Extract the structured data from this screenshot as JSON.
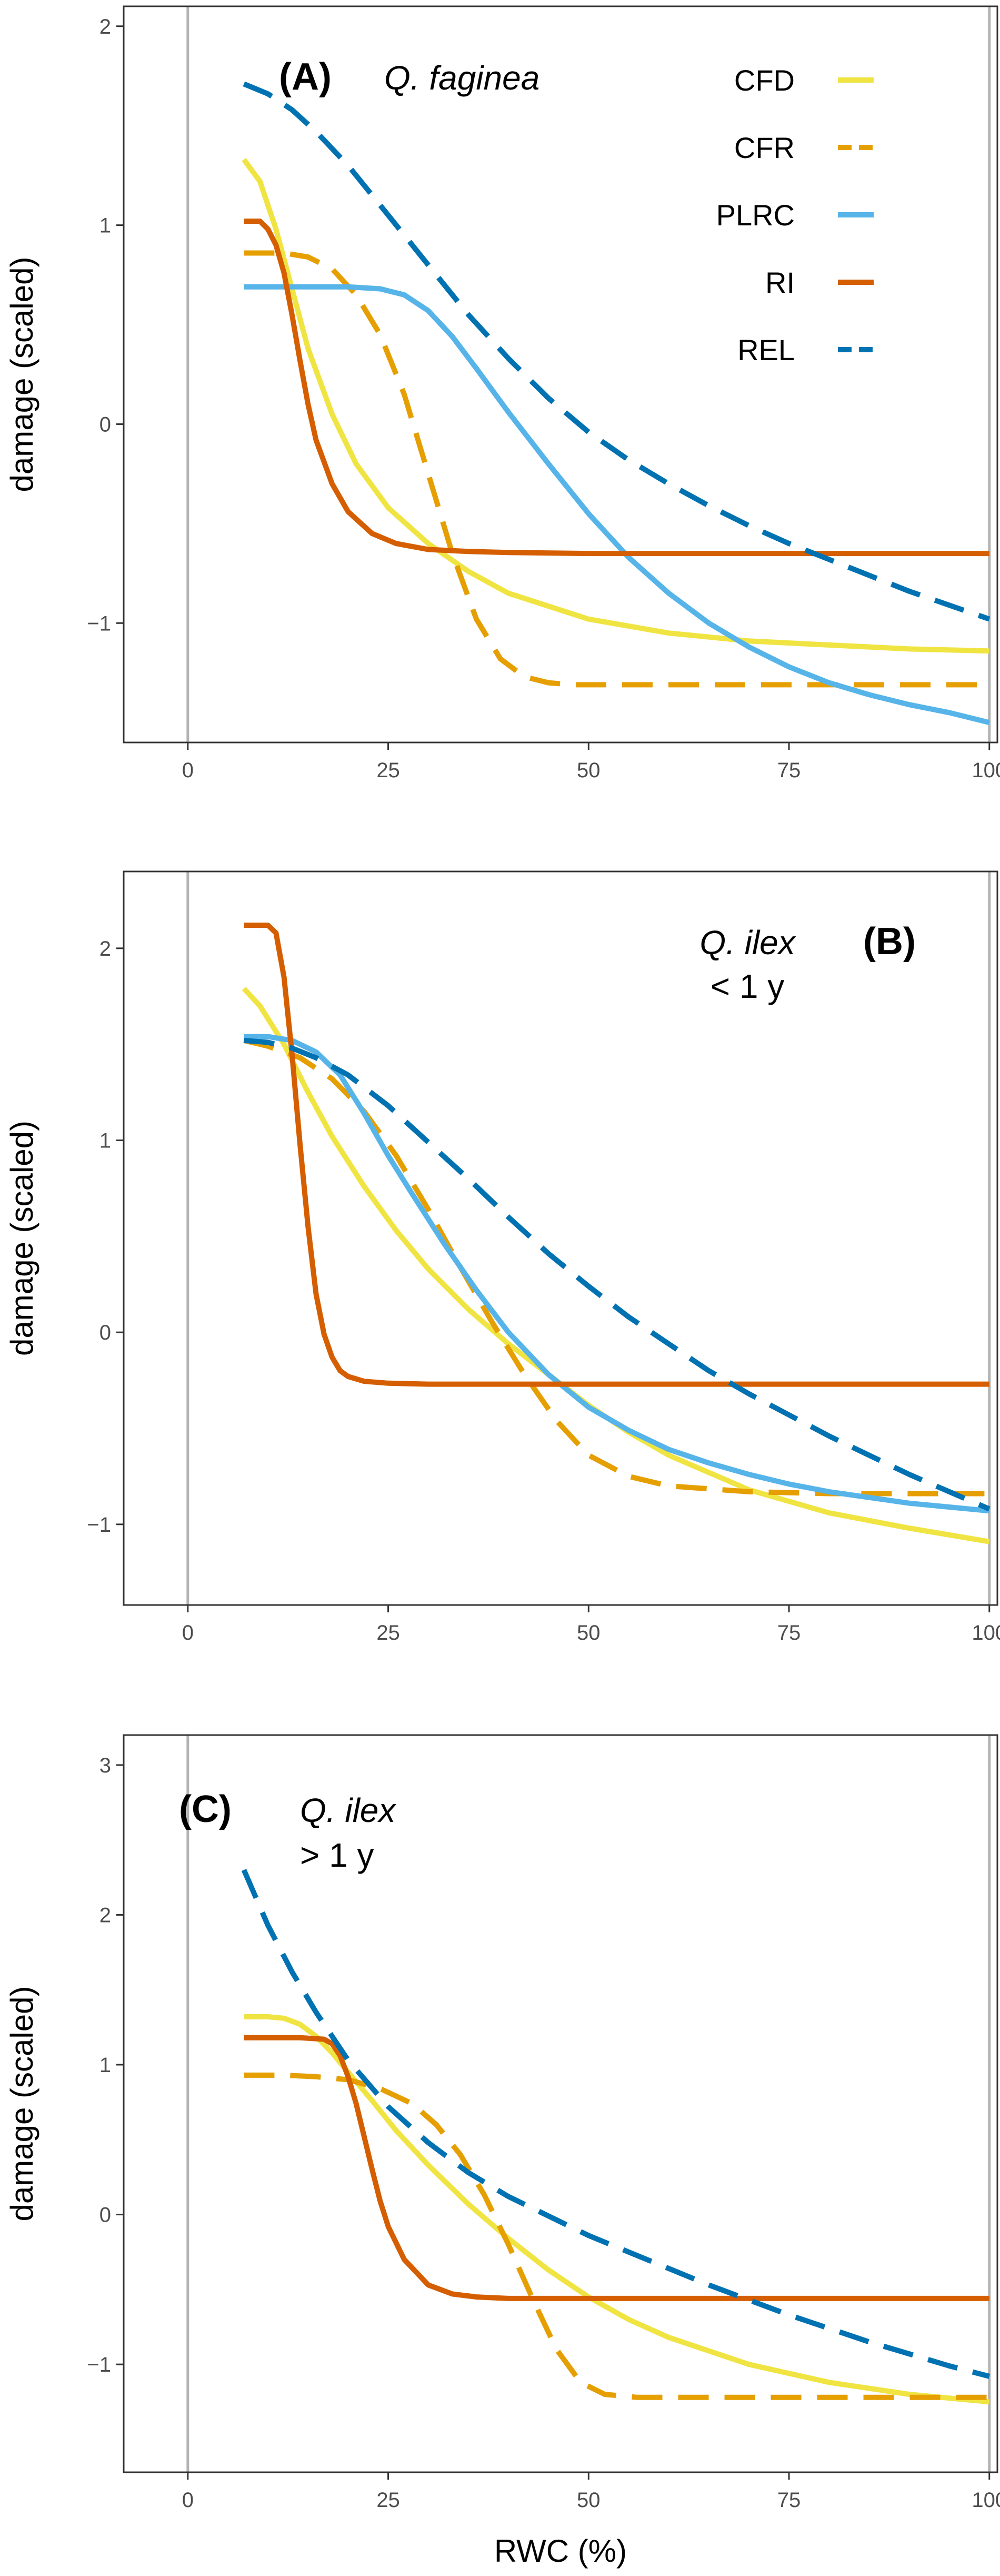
{
  "colors": {
    "CFD": "#F0E442",
    "CFR": "#E69F00",
    "PLRC": "#56B4E9",
    "RI": "#D55E00",
    "REL": "#0072B2",
    "panel_border": "#333333",
    "reference_line": "#b3b3b3",
    "tick_text": "#4d4d4d"
  },
  "legend": {
    "placement": "top-right",
    "entries": [
      {
        "key": "CFD",
        "label": "CFD",
        "linetype": "solid"
      },
      {
        "key": "CFR",
        "label": "CFR",
        "linetype": "dashed"
      },
      {
        "key": "PLRC",
        "label": "PLRC",
        "linetype": "solid"
      },
      {
        "key": "RI",
        "label": "RI",
        "linetype": "solid"
      },
      {
        "key": "REL",
        "label": "REL",
        "linetype": "dashed"
      }
    ]
  },
  "chart_data": [
    {
      "type": "line",
      "panel_label": "(A)",
      "species": "Q. faginea",
      "age": "",
      "xlabel": "",
      "ylabel": "damage (scaled)",
      "xlim": [
        -8,
        101
      ],
      "ylim": [
        -1.6,
        2.1
      ],
      "xticks": [
        0,
        25,
        50,
        75,
        100
      ],
      "yticks": [
        -1,
        0,
        1,
        2
      ],
      "xtick_labels": [
        "0",
        "25",
        "50",
        "75",
        "100"
      ],
      "ytick_labels": [
        "−1",
        "0",
        "1",
        "2"
      ],
      "reference_lines_x": [
        0,
        100
      ],
      "grid": false,
      "series": [
        {
          "name": "CFD",
          "x": [
            7,
            9,
            11,
            13,
            15,
            18,
            21,
            25,
            30,
            35,
            40,
            50,
            60,
            70,
            80,
            90,
            100
          ],
          "y": [
            1.33,
            1.22,
            0.98,
            0.68,
            0.38,
            0.05,
            -0.2,
            -0.42,
            -0.6,
            -0.74,
            -0.85,
            -0.98,
            -1.05,
            -1.09,
            -1.11,
            -1.13,
            -1.14
          ]
        },
        {
          "name": "CFR",
          "x": [
            7,
            12,
            15,
            18,
            21,
            24,
            27,
            30,
            33,
            36,
            39,
            42,
            45,
            48,
            55,
            70,
            85,
            100
          ],
          "y": [
            0.86,
            0.86,
            0.84,
            0.78,
            0.65,
            0.45,
            0.15,
            -0.25,
            -0.65,
            -0.98,
            -1.18,
            -1.27,
            -1.3,
            -1.31,
            -1.31,
            -1.31,
            -1.31,
            -1.31
          ]
        },
        {
          "name": "PLRC",
          "x": [
            7,
            15,
            20,
            24,
            27,
            30,
            33,
            36,
            40,
            45,
            50,
            55,
            60,
            65,
            70,
            75,
            80,
            85,
            90,
            95,
            100
          ],
          "y": [
            0.69,
            0.69,
            0.69,
            0.68,
            0.65,
            0.57,
            0.44,
            0.28,
            0.06,
            -0.2,
            -0.45,
            -0.67,
            -0.85,
            -1.0,
            -1.12,
            -1.22,
            -1.3,
            -1.36,
            -1.41,
            -1.45,
            -1.5
          ]
        },
        {
          "name": "RI",
          "x": [
            7,
            9,
            10,
            11,
            12,
            13,
            14,
            15,
            16,
            18,
            20,
            23,
            26,
            30,
            35,
            40,
            50,
            60,
            70,
            80,
            90,
            100
          ],
          "y": [
            1.02,
            1.02,
            0.98,
            0.9,
            0.76,
            0.55,
            0.32,
            0.1,
            -0.08,
            -0.3,
            -0.44,
            -0.55,
            -0.6,
            -0.63,
            -0.64,
            -0.645,
            -0.65,
            -0.65,
            -0.65,
            -0.65,
            -0.65,
            -0.65
          ]
        },
        {
          "name": "REL",
          "x": [
            7,
            10,
            13,
            16,
            20,
            25,
            30,
            35,
            40,
            45,
            50,
            55,
            60,
            65,
            70,
            75,
            80,
            85,
            90,
            95,
            100
          ],
          "y": [
            1.71,
            1.66,
            1.58,
            1.47,
            1.3,
            1.05,
            0.8,
            0.55,
            0.33,
            0.13,
            -0.04,
            -0.18,
            -0.3,
            -0.41,
            -0.51,
            -0.6,
            -0.68,
            -0.76,
            -0.84,
            -0.91,
            -0.98
          ]
        }
      ]
    },
    {
      "type": "line",
      "panel_label": "(B)",
      "species": "Q. ilex",
      "age": "< 1 y",
      "xlabel": "",
      "ylabel": "damage (scaled)",
      "xlim": [
        -8,
        101
      ],
      "ylim": [
        -1.42,
        2.4
      ],
      "xticks": [
        0,
        25,
        50,
        75,
        100
      ],
      "yticks": [
        -1,
        0,
        1,
        2
      ],
      "xtick_labels": [
        "0",
        "25",
        "50",
        "75",
        "100"
      ],
      "ytick_labels": [
        "−1",
        "0",
        "1",
        "2"
      ],
      "reference_lines_x": [
        0,
        100
      ],
      "grid": false,
      "series": [
        {
          "name": "CFD",
          "x": [
            7,
            9,
            12,
            15,
            18,
            22,
            26,
            30,
            35,
            40,
            45,
            50,
            55,
            60,
            70,
            80,
            90,
            100
          ],
          "y": [
            1.79,
            1.7,
            1.5,
            1.25,
            1.02,
            0.76,
            0.53,
            0.33,
            0.12,
            -0.06,
            -0.22,
            -0.38,
            -0.52,
            -0.64,
            -0.82,
            -0.94,
            -1.02,
            -1.09
          ]
        },
        {
          "name": "CFR",
          "x": [
            7,
            10,
            14,
            18,
            22,
            26,
            30,
            34,
            38,
            42,
            46,
            50,
            55,
            60,
            70,
            80,
            90,
            100
          ],
          "y": [
            1.52,
            1.49,
            1.43,
            1.32,
            1.15,
            0.92,
            0.64,
            0.34,
            0.05,
            -0.22,
            -0.46,
            -0.64,
            -0.75,
            -0.8,
            -0.83,
            -0.84,
            -0.84,
            -0.84
          ]
        },
        {
          "name": "PLRC",
          "x": [
            7,
            10,
            13,
            16,
            19,
            22,
            25,
            28,
            32,
            36,
            40,
            45,
            50,
            55,
            60,
            65,
            70,
            75,
            80,
            85,
            90,
            95,
            100
          ],
          "y": [
            1.54,
            1.54,
            1.52,
            1.46,
            1.34,
            1.14,
            0.92,
            0.72,
            0.46,
            0.22,
            0.0,
            -0.22,
            -0.39,
            -0.51,
            -0.61,
            -0.68,
            -0.74,
            -0.79,
            -0.83,
            -0.86,
            -0.89,
            -0.91,
            -0.93
          ]
        },
        {
          "name": "RI",
          "x": [
            7,
            10,
            11,
            12,
            13,
            14,
            15,
            16,
            17,
            18,
            19,
            20,
            22,
            25,
            30,
            40,
            50,
            60,
            70,
            80,
            90,
            100
          ],
          "y": [
            2.12,
            2.12,
            2.08,
            1.85,
            1.45,
            0.98,
            0.55,
            0.2,
            -0.01,
            -0.13,
            -0.2,
            -0.23,
            -0.255,
            -0.265,
            -0.27,
            -0.27,
            -0.27,
            -0.27,
            -0.27,
            -0.27,
            -0.27,
            -0.27
          ]
        },
        {
          "name": "REL",
          "x": [
            7,
            10,
            13,
            16,
            20,
            25,
            30,
            35,
            40,
            45,
            50,
            55,
            60,
            65,
            70,
            75,
            80,
            85,
            90,
            95,
            100
          ],
          "y": [
            1.52,
            1.51,
            1.48,
            1.43,
            1.34,
            1.18,
            0.99,
            0.8,
            0.6,
            0.41,
            0.24,
            0.08,
            -0.06,
            -0.2,
            -0.32,
            -0.43,
            -0.54,
            -0.64,
            -0.74,
            -0.83,
            -0.92
          ]
        }
      ]
    },
    {
      "type": "line",
      "panel_label": "(C)",
      "species": "Q. ilex",
      "age": "> 1 y",
      "xlabel": "RWC (%)",
      "ylabel": "damage (scaled)",
      "xlim": [
        -8,
        101
      ],
      "ylim": [
        -1.72,
        3.2
      ],
      "xticks": [
        0,
        25,
        50,
        75,
        100
      ],
      "yticks": [
        -1,
        0,
        1,
        2,
        3
      ],
      "xtick_labels": [
        "0",
        "25",
        "50",
        "75",
        "100"
      ],
      "ytick_labels": [
        "−1",
        "0",
        "1",
        "2",
        "3"
      ],
      "reference_lines_x": [
        0,
        100
      ],
      "grid": false,
      "series": [
        {
          "name": "CFD",
          "x": [
            7,
            10,
            12,
            14,
            16,
            18,
            20,
            23,
            26,
            30,
            35,
            40,
            45,
            50,
            55,
            60,
            70,
            80,
            90,
            100
          ],
          "y": [
            1.32,
            1.32,
            1.31,
            1.27,
            1.19,
            1.08,
            0.95,
            0.76,
            0.56,
            0.33,
            0.07,
            -0.16,
            -0.37,
            -0.55,
            -0.7,
            -0.82,
            -1.0,
            -1.12,
            -1.2,
            -1.25
          ]
        },
        {
          "name": "CFR",
          "x": [
            7,
            12,
            16,
            20,
            24,
            28,
            31,
            34,
            37,
            40,
            43,
            46,
            49,
            52,
            56,
            60,
            70,
            80,
            90,
            100
          ],
          "y": [
            0.93,
            0.93,
            0.92,
            0.9,
            0.84,
            0.74,
            0.6,
            0.4,
            0.13,
            -0.2,
            -0.56,
            -0.9,
            -1.12,
            -1.2,
            -1.22,
            -1.22,
            -1.22,
            -1.22,
            -1.22,
            -1.22
          ]
        },
        {
          "name": "RI",
          "x": [
            7,
            14,
            17,
            18,
            19,
            20,
            21,
            22,
            23,
            24,
            25,
            27,
            30,
            33,
            36,
            40,
            50,
            60,
            70,
            80,
            90,
            100
          ],
          "y": [
            1.18,
            1.18,
            1.17,
            1.14,
            1.06,
            0.92,
            0.74,
            0.52,
            0.3,
            0.09,
            -0.08,
            -0.3,
            -0.47,
            -0.53,
            -0.55,
            -0.56,
            -0.56,
            -0.56,
            -0.56,
            -0.56,
            -0.56,
            -0.56
          ]
        },
        {
          "name": "REL",
          "x": [
            7,
            10,
            13,
            16,
            20,
            25,
            30,
            35,
            40,
            45,
            50,
            55,
            60,
            65,
            70,
            75,
            80,
            85,
            90,
            95,
            100
          ],
          "y": [
            2.3,
            1.93,
            1.62,
            1.35,
            1.03,
            0.72,
            0.48,
            0.28,
            0.12,
            -0.01,
            -0.14,
            -0.25,
            -0.36,
            -0.47,
            -0.57,
            -0.67,
            -0.76,
            -0.85,
            -0.93,
            -1.01,
            -1.08
          ]
        }
      ]
    }
  ]
}
